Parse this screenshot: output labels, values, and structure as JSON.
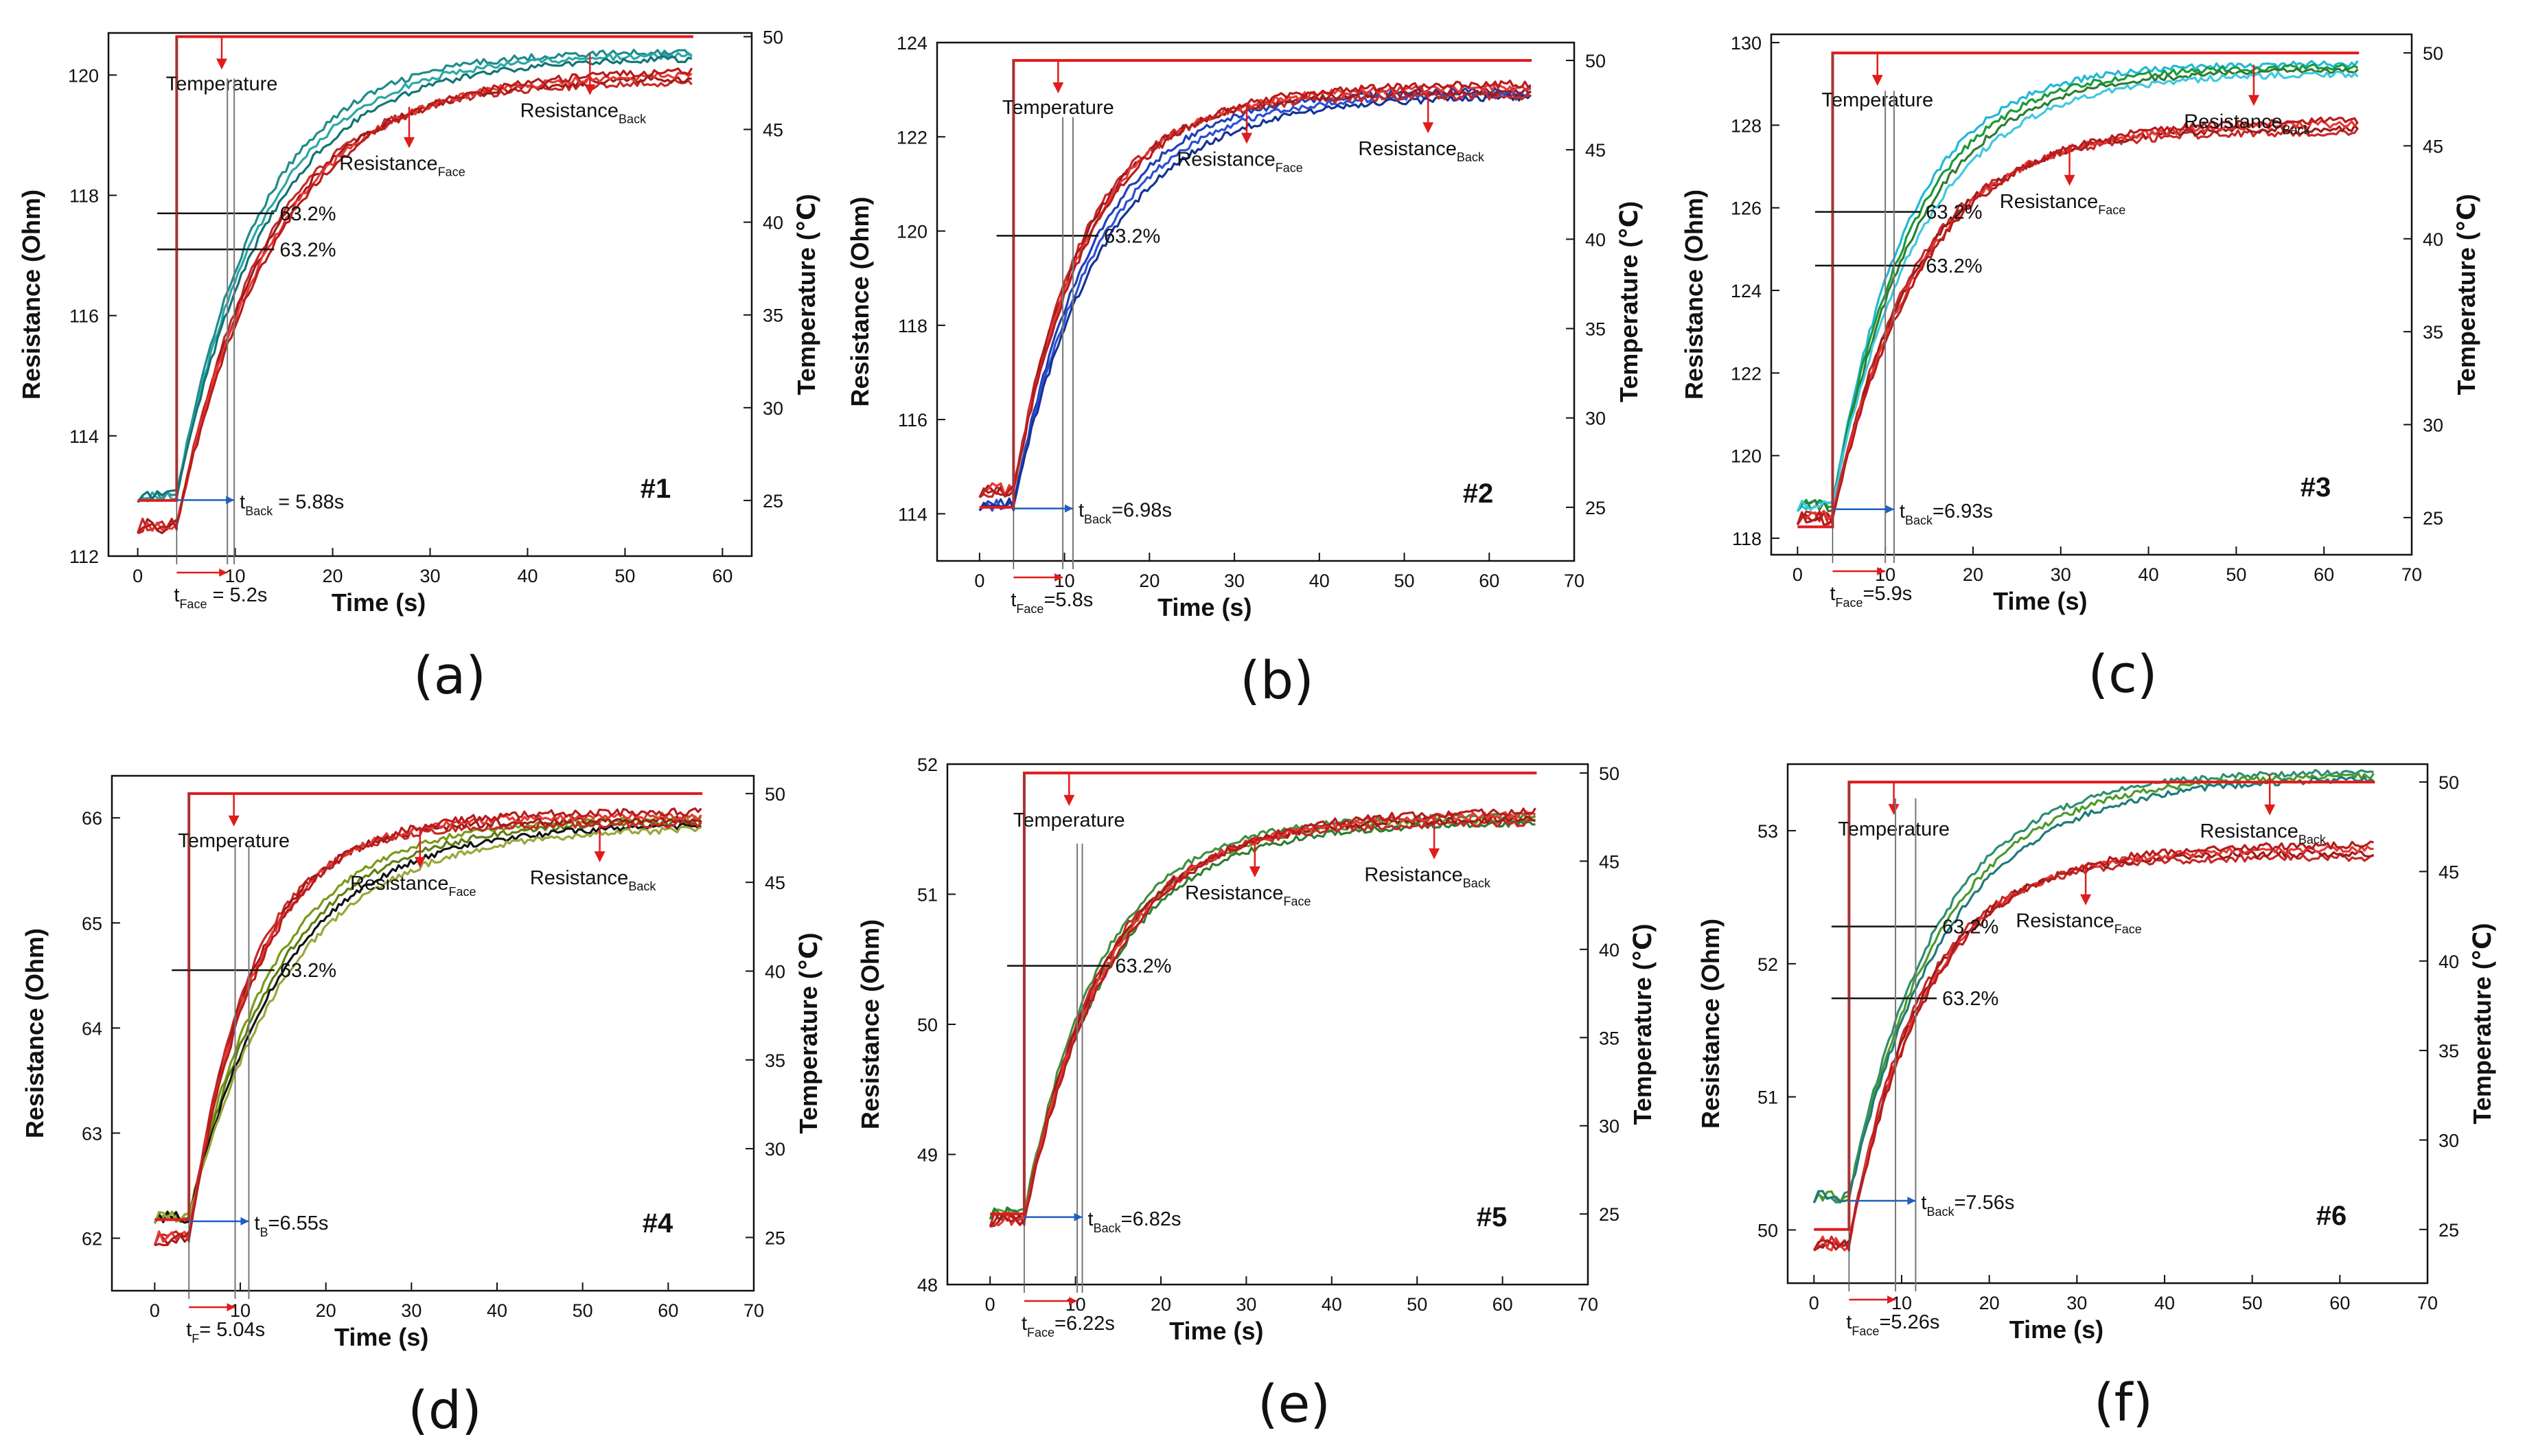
{
  "figure": {
    "colors": {
      "temperature": "#e11b1b",
      "face_series": [
        "#c62828",
        "#9e1b1b",
        "#e53935",
        "#b71c1c",
        "#d32f2f"
      ],
      "back_series_1": [
        "#1e8c8c",
        "#2aa7a7",
        "#137373"
      ],
      "back_series_2": [
        "#1f3fb5",
        "#2c4fd0",
        "#163294"
      ],
      "back_series_3": [
        "#22b8d8",
        "#1a9a3a",
        "#2e7d32",
        "#40c8e0"
      ],
      "back_series_4": [
        "#7a9a1a",
        "#5f7f12",
        "#111111",
        "#9aa63a"
      ],
      "back_series_5": [
        "#3f8f3f",
        "#6a9a2a",
        "#2e7d32"
      ],
      "back_series_6": [
        "#2d8f6f",
        "#4c9a2a",
        "#1f7a7a"
      ],
      "axis": "#111111"
    }
  },
  "chart_data": [
    {
      "type": "line",
      "panel_label": "(a)",
      "sample": "#1",
      "xlabel": "Time (s)",
      "ylabel": "Resistance (Ohm)",
      "y2label": "Temperature (℃)",
      "xlim": [
        -3,
        63
      ],
      "ylim": [
        112,
        120.7
      ],
      "y2lim": [
        22,
        50.2
      ],
      "xticks": [
        "0",
        "10",
        "20",
        "30",
        "40",
        "50",
        "60"
      ],
      "yticks": [
        "112",
        "114",
        "116",
        "118",
        "120"
      ],
      "y2ticks": [
        "25",
        "30",
        "35",
        "40",
        "45",
        "50"
      ],
      "t_step": 4,
      "t_end": 57,
      "temp_low": 25,
      "temp_high": 50,
      "face": {
        "r0": 112.5,
        "r_inf": 120.0,
        "tau": 9.0
      },
      "back": {
        "r0": 113.0,
        "r_inf": 120.4,
        "tau": 8.5
      },
      "labels": {
        "temperature": "Temperature",
        "face": "Resistance",
        "face_sub": "Face",
        "back": "Resistance",
        "back_sub": "Back"
      },
      "pct": [
        {
          "text": "63.2%",
          "y": 117.7
        },
        {
          "text": "63.2%",
          "y": 117.1
        }
      ],
      "t_back": {
        "main": "t",
        "sub": "Back",
        "value": " = 5.88s"
      },
      "t_face": {
        "main": "t",
        "sub": "Face",
        "value": " = 5.2s"
      },
      "vlines": [
        9.2,
        9.9
      ]
    },
    {
      "type": "line",
      "panel_label": "(b)",
      "sample": "#2",
      "xlabel": "Time (s)",
      "ylabel": "Resistance (Ohm)",
      "y2label": "Temperature (℃)",
      "xlim": [
        -5,
        70
      ],
      "ylim": [
        113,
        124
      ],
      "y2lim": [
        22,
        51
      ],
      "xticks": [
        "0",
        "10",
        "20",
        "30",
        "40",
        "50",
        "60",
        "70"
      ],
      "yticks": [
        "114",
        "116",
        "118",
        "120",
        "122",
        "124"
      ],
      "y2ticks": [
        "25",
        "30",
        "35",
        "40",
        "45",
        "50"
      ],
      "t_step": 4,
      "t_end": 65,
      "temp_low": 25,
      "temp_high": 50,
      "face": {
        "r0": 114.5,
        "r_inf": 123.0,
        "tau": 8.0
      },
      "back": {
        "r0": 114.2,
        "r_inf": 123.0,
        "tau": 9.5
      },
      "labels": {
        "temperature": "Temperature",
        "face": "Resistance",
        "face_sub": "Face",
        "back": "Resistance",
        "back_sub": "Back"
      },
      "pct": [
        {
          "text": "63.2%",
          "y": 119.9
        }
      ],
      "t_back": {
        "main": "t",
        "sub": "Back",
        "value": "=6.98s"
      },
      "t_face": {
        "main": "t",
        "sub": "Face",
        "value": "=5.8s"
      },
      "vlines": [
        9.8,
        11.0
      ]
    },
    {
      "type": "line",
      "panel_label": "(c)",
      "sample": "#3",
      "xlabel": "Time (s)",
      "ylabel": "Resistance (Ohm)",
      "y2label": "Temperature (℃)",
      "xlim": [
        -3,
        70
      ],
      "ylim": [
        117.6,
        130.2
      ],
      "y2lim": [
        23,
        51
      ],
      "xticks": [
        "0",
        "10",
        "20",
        "30",
        "40",
        "50",
        "60",
        "70"
      ],
      "yticks": [
        "118",
        "120",
        "122",
        "124",
        "126",
        "128",
        "130"
      ],
      "y2ticks": [
        "25",
        "30",
        "35",
        "40",
        "45",
        "50"
      ],
      "t_step": 4,
      "t_end": 64,
      "temp_low": 24.5,
      "temp_high": 50,
      "face": {
        "r0": 118.5,
        "r_inf": 128.0,
        "tau": 9.0
      },
      "back": {
        "r0": 118.8,
        "r_inf": 129.5,
        "tau": 8.5
      },
      "labels": {
        "temperature": "Temperature",
        "face": "Resistance",
        "face_sub": "Face",
        "back": "Resistance",
        "back_sub": "Back"
      },
      "pct": [
        {
          "text": "63.2%",
          "y": 125.9
        },
        {
          "text": "63.2%",
          "y": 124.6
        }
      ],
      "t_back": {
        "main": "t",
        "sub": "Back",
        "value": "=6.93s"
      },
      "t_face": {
        "main": "t",
        "sub": "Face",
        "value": "=5.9s"
      },
      "vlines": [
        10.0,
        11.0
      ]
    },
    {
      "type": "line",
      "panel_label": "(d)",
      "sample": "#4",
      "xlabel": "Time (s)",
      "ylabel": "Resistance (Ohm)",
      "y2label": "Temperature (℃)",
      "xlim": [
        -5,
        70
      ],
      "ylim": [
        61.5,
        66.4
      ],
      "y2lim": [
        22,
        51
      ],
      "xticks": [
        "0",
        "10",
        "20",
        "30",
        "40",
        "50",
        "60",
        "70"
      ],
      "yticks": [
        "62",
        "63",
        "64",
        "65",
        "66"
      ],
      "y2ticks": [
        "25",
        "30",
        "35",
        "40",
        "45",
        "50"
      ],
      "t_step": 4,
      "t_end": 64,
      "temp_low": 26,
      "temp_high": 50,
      "face": {
        "r0": 62.0,
        "r_inf": 66.0,
        "tau": 7.0
      },
      "back": {
        "r0": 62.2,
        "r_inf": 66.0,
        "tau": 10.0
      },
      "labels": {
        "temperature": "Temperature",
        "face": "Resistance",
        "face_sub": "Face",
        "back": "Resistance",
        "back_sub": "Back"
      },
      "pct": [
        {
          "text": "63.2%",
          "y": 64.55
        }
      ],
      "t_back": {
        "main": "t",
        "sub": "B",
        "value": "=6.55s"
      },
      "t_face": {
        "main": "t",
        "sub": "F",
        "value": "= 5.04s"
      },
      "vlines": [
        9.4,
        11.0
      ]
    },
    {
      "type": "line",
      "panel_label": "(e)",
      "sample": "#5",
      "xlabel": "Time (s)",
      "ylabel": "Resistance (Ohm)",
      "y2label": "Temperature (℃)",
      "xlim": [
        -5,
        70
      ],
      "ylim": [
        48,
        52
      ],
      "y2lim": [
        21,
        50.5
      ],
      "xticks": [
        "0",
        "10",
        "20",
        "30",
        "40",
        "50",
        "60",
        "70"
      ],
      "yticks": [
        "48",
        "49",
        "50",
        "51",
        "52"
      ],
      "y2ticks": [
        "25",
        "30",
        "35",
        "40",
        "45",
        "50"
      ],
      "t_step": 4,
      "t_end": 64,
      "temp_low": 25,
      "temp_high": 50,
      "face": {
        "r0": 48.5,
        "r_inf": 51.6,
        "tau": 9.0
      },
      "back": {
        "r0": 48.55,
        "r_inf": 51.6,
        "tau": 9.0
      },
      "labels": {
        "temperature": "Temperature",
        "face": "Resistance",
        "face_sub": "Face",
        "back": "Resistance",
        "back_sub": "Back"
      },
      "pct": [
        {
          "text": "63.2%",
          "y": 50.45
        }
      ],
      "t_back": {
        "main": "t",
        "sub": "Back",
        "value": "=6.82s"
      },
      "t_face": {
        "main": "t",
        "sub": "Face",
        "value": "=6.22s"
      },
      "vlines": [
        10.2,
        10.8
      ]
    },
    {
      "type": "line",
      "panel_label": "(f)",
      "sample": "#6",
      "xlabel": "Time (s)",
      "ylabel": "Resistance (Ohm)",
      "y2label": "Temperature (℃)",
      "xlim": [
        -3,
        70
      ],
      "ylim": [
        49.6,
        53.5
      ],
      "y2lim": [
        22,
        51
      ],
      "xticks": [
        "0",
        "10",
        "20",
        "30",
        "40",
        "50",
        "60",
        "70"
      ],
      "yticks": [
        "50",
        "51",
        "52",
        "53"
      ],
      "y2ticks": [
        "25",
        "30",
        "35",
        "40",
        "45",
        "50"
      ],
      "t_step": 4,
      "t_end": 64,
      "temp_low": 25,
      "temp_high": 50,
      "face": {
        "r0": 49.9,
        "r_inf": 52.85,
        "tau": 8.0
      },
      "back": {
        "r0": 50.25,
        "r_inf": 53.45,
        "tau": 10.0
      },
      "labels": {
        "temperature": "Temperature",
        "face": "Resistance",
        "face_sub": "Face",
        "back": "Resistance",
        "back_sub": "Back"
      },
      "pct": [
        {
          "text": "63.2%",
          "y": 52.28
        },
        {
          "text": "63.2%",
          "y": 51.74
        }
      ],
      "t_back": {
        "main": "t",
        "sub": "Back",
        "value": "=7.56s"
      },
      "t_face": {
        "main": "t",
        "sub": "Face",
        "value": "=5.26s"
      },
      "vlines": [
        9.3,
        11.6
      ]
    }
  ]
}
